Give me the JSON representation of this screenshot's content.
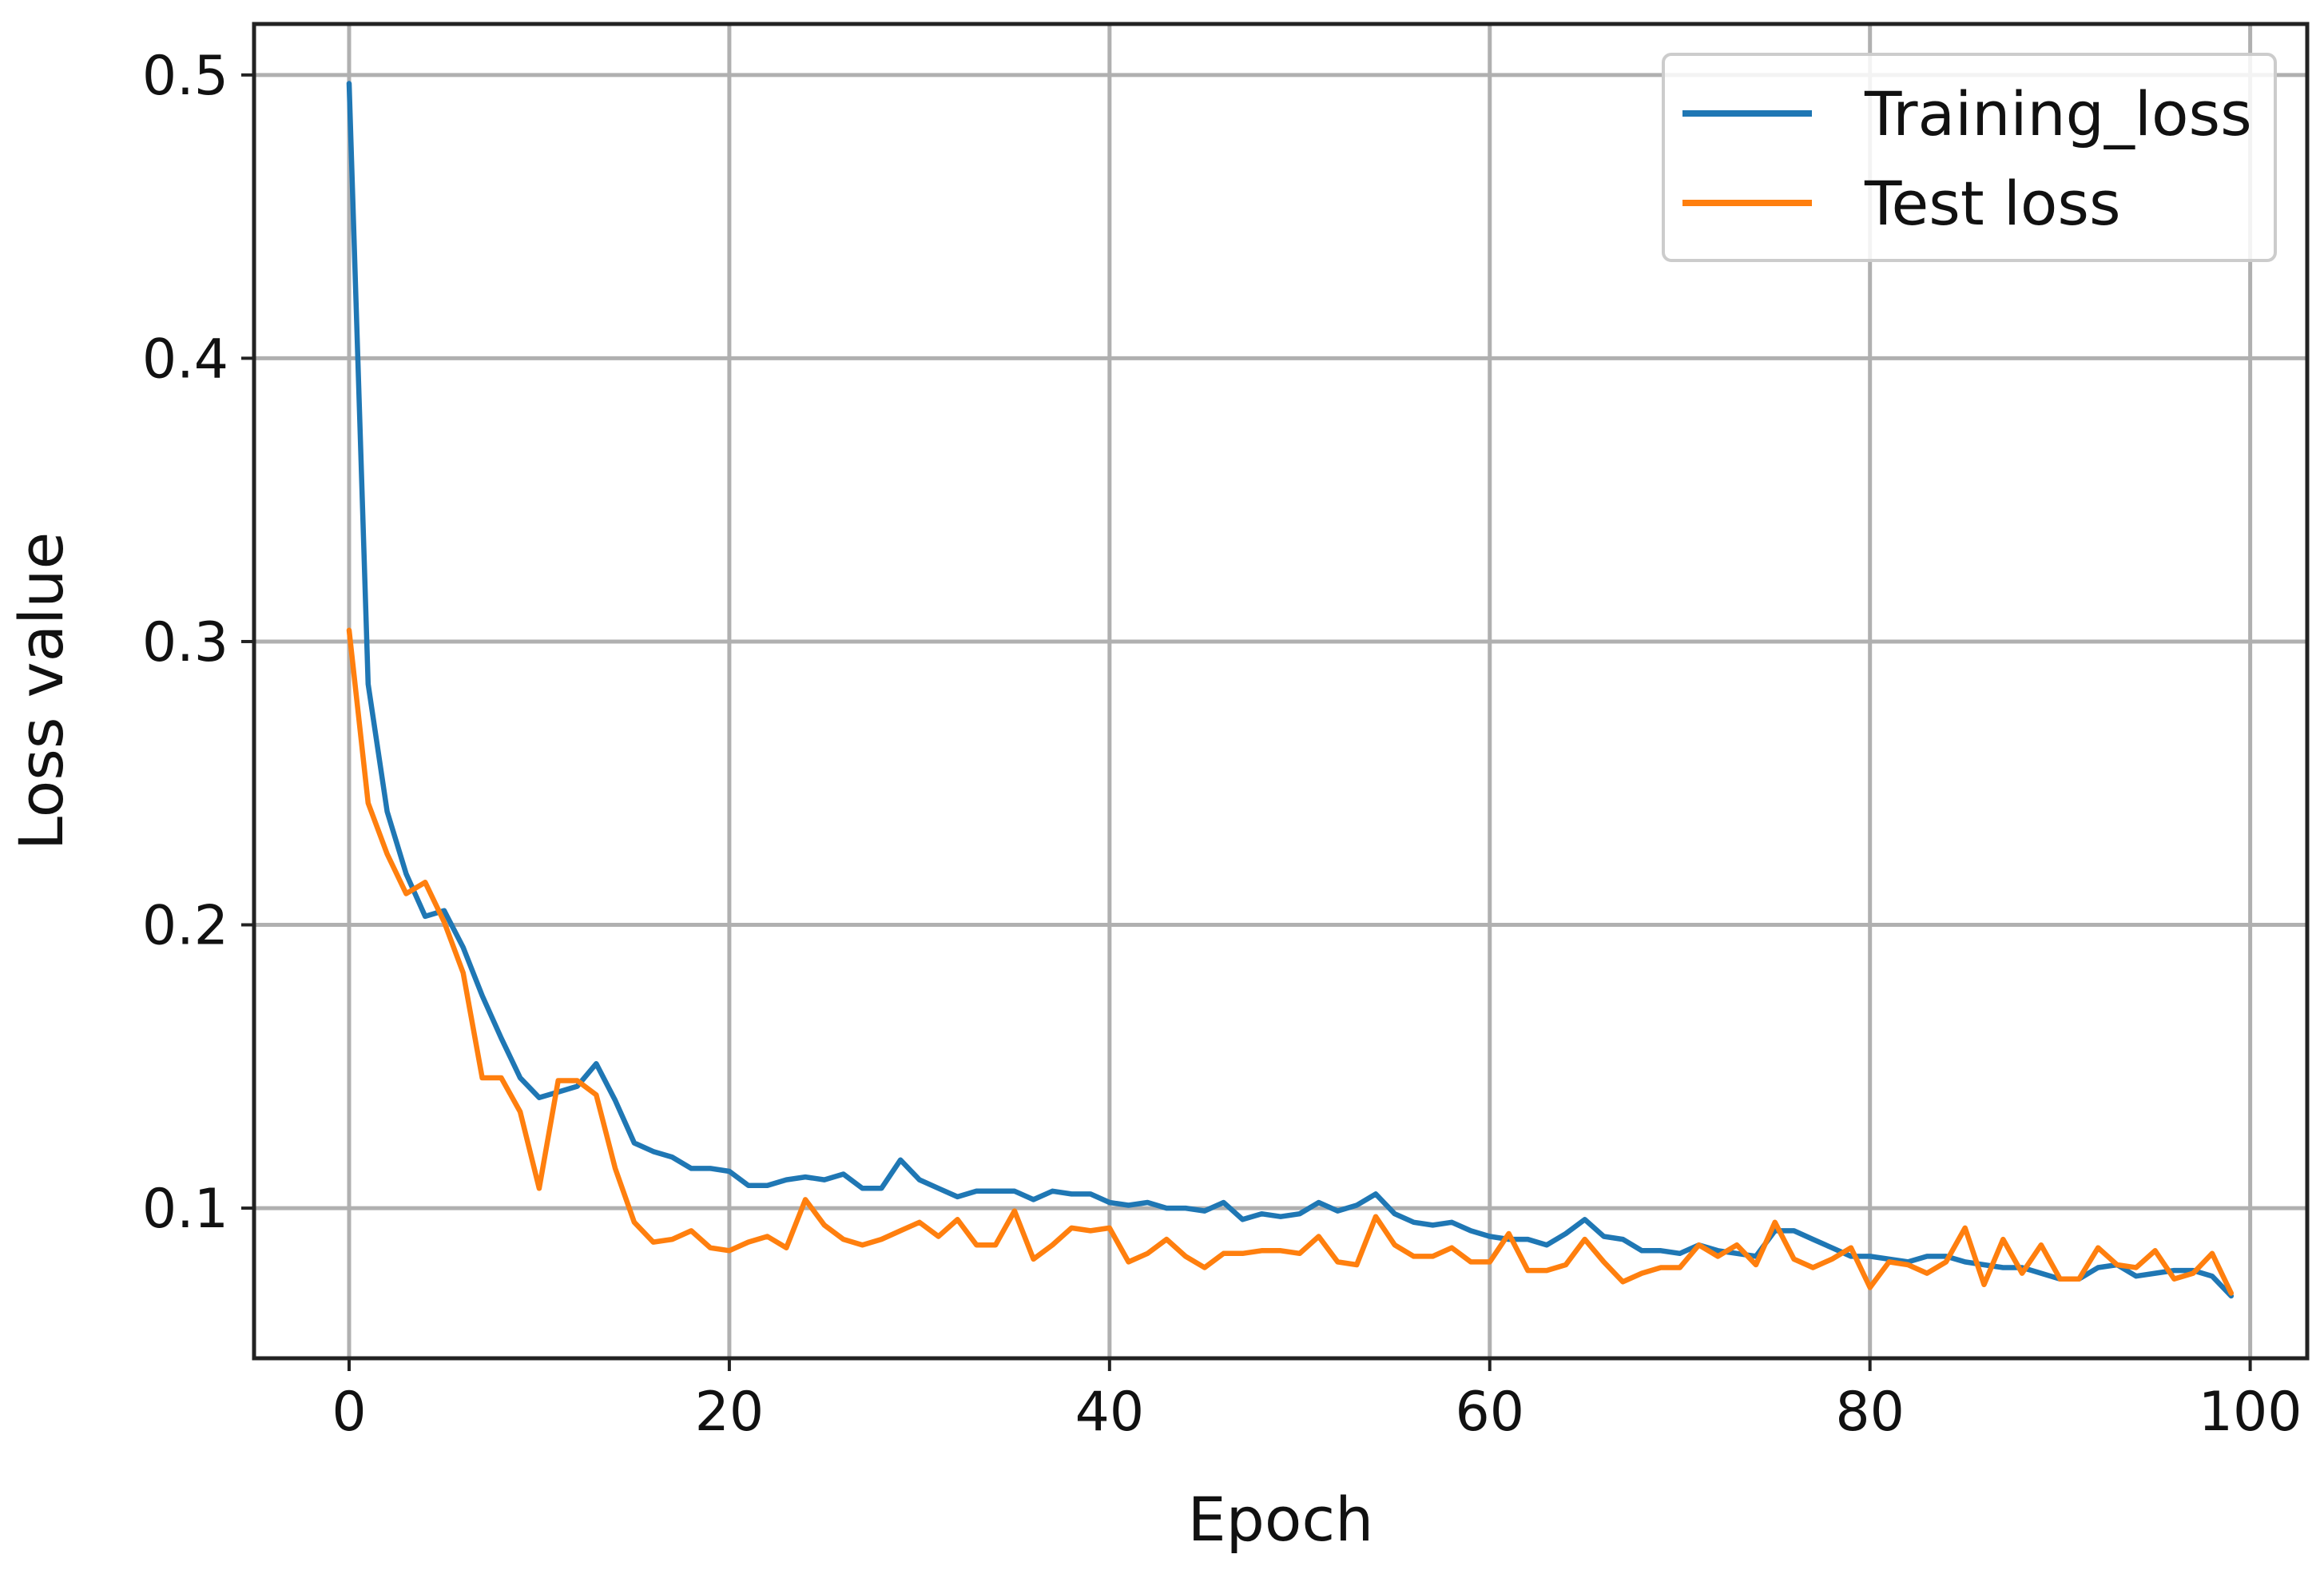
{
  "chart_data": {
    "type": "line",
    "xlabel": "Epoch",
    "ylabel": "Loss value",
    "xlim": [
      -5,
      103
    ],
    "ylim": [
      0.047,
      0.518
    ],
    "xticks": [
      0,
      20,
      40,
      60,
      80,
      100
    ],
    "yticks": [
      0.1,
      0.2,
      0.3,
      0.4,
      0.5
    ],
    "xtick_labels": [
      "0",
      "20",
      "40",
      "60",
      "80",
      "100"
    ],
    "ytick_labels": [
      "0.1",
      "0.2",
      "0.3",
      "0.4",
      "0.5"
    ],
    "grid": true,
    "legend_position": "upper right",
    "series": [
      {
        "name": "Training_loss",
        "color": "#1f77b4",
        "x": [
          0,
          1,
          2,
          3,
          4,
          5,
          6,
          7,
          8,
          9,
          10,
          11,
          12,
          13,
          14,
          15,
          16,
          17,
          18,
          19,
          20,
          21,
          22,
          23,
          24,
          25,
          26,
          27,
          28,
          29,
          30,
          31,
          32,
          33,
          34,
          35,
          36,
          37,
          38,
          39,
          40,
          41,
          42,
          43,
          44,
          45,
          46,
          47,
          48,
          49,
          50,
          51,
          52,
          53,
          54,
          55,
          56,
          57,
          58,
          59,
          60,
          61,
          62,
          63,
          64,
          65,
          66,
          67,
          68,
          69,
          70,
          71,
          72,
          73,
          74,
          75,
          76,
          77,
          78,
          79,
          80,
          81,
          82,
          83,
          84,
          85,
          86,
          87,
          88,
          89,
          90,
          91,
          92,
          93,
          94,
          95,
          96,
          97,
          98,
          99
        ],
        "values": [
          0.497,
          0.285,
          0.24,
          0.218,
          0.203,
          0.205,
          0.192,
          0.175,
          0.16,
          0.146,
          0.139,
          0.141,
          0.143,
          0.151,
          0.138,
          0.123,
          0.12,
          0.118,
          0.114,
          0.114,
          0.113,
          0.108,
          0.108,
          0.11,
          0.111,
          0.11,
          0.112,
          0.107,
          0.107,
          0.117,
          0.11,
          0.107,
          0.104,
          0.106,
          0.106,
          0.106,
          0.103,
          0.106,
          0.105,
          0.105,
          0.102,
          0.101,
          0.102,
          0.1,
          0.1,
          0.099,
          0.102,
          0.096,
          0.098,
          0.097,
          0.098,
          0.102,
          0.099,
          0.101,
          0.105,
          0.098,
          0.095,
          0.094,
          0.095,
          0.092,
          0.09,
          0.089,
          0.089,
          0.087,
          0.091,
          0.096,
          0.09,
          0.089,
          0.085,
          0.085,
          0.084,
          0.087,
          0.085,
          0.084,
          0.083,
          0.092,
          0.092,
          0.089,
          0.086,
          0.083,
          0.083,
          0.082,
          0.081,
          0.083,
          0.083,
          0.081,
          0.08,
          0.079,
          0.079,
          0.077,
          0.075,
          0.075,
          0.079,
          0.08,
          0.076,
          0.077,
          0.078,
          0.078,
          0.076,
          0.069
        ]
      },
      {
        "name": "Test loss",
        "color": "#ff7f0e",
        "x": [
          0,
          1,
          2,
          3,
          4,
          5,
          6,
          7,
          8,
          9,
          10,
          11,
          12,
          13,
          14,
          15,
          16,
          17,
          18,
          19,
          20,
          21,
          22,
          23,
          24,
          25,
          26,
          27,
          28,
          29,
          30,
          31,
          32,
          33,
          34,
          35,
          36,
          37,
          38,
          39,
          40,
          41,
          42,
          43,
          44,
          45,
          46,
          47,
          48,
          49,
          50,
          51,
          52,
          53,
          54,
          55,
          56,
          57,
          58,
          59,
          60,
          61,
          62,
          63,
          64,
          65,
          66,
          67,
          68,
          69,
          70,
          71,
          72,
          73,
          74,
          75,
          76,
          77,
          78,
          79,
          80,
          81,
          82,
          83,
          84,
          85,
          86,
          87,
          88,
          89,
          90,
          91,
          92,
          93,
          94,
          95,
          96,
          97,
          98,
          99
        ],
        "values": [
          0.304,
          0.243,
          0.225,
          0.211,
          0.215,
          0.201,
          0.183,
          0.146,
          0.146,
          0.134,
          0.107,
          0.145,
          0.145,
          0.14,
          0.114,
          0.095,
          0.088,
          0.089,
          0.092,
          0.086,
          0.085,
          0.088,
          0.09,
          0.086,
          0.103,
          0.094,
          0.089,
          0.087,
          0.089,
          0.092,
          0.095,
          0.09,
          0.096,
          0.087,
          0.087,
          0.099,
          0.082,
          0.087,
          0.093,
          0.092,
          0.093,
          0.081,
          0.084,
          0.089,
          0.083,
          0.079,
          0.084,
          0.084,
          0.085,
          0.085,
          0.084,
          0.09,
          0.081,
          0.08,
          0.097,
          0.087,
          0.083,
          0.083,
          0.086,
          0.081,
          0.081,
          0.091,
          0.078,
          0.078,
          0.08,
          0.089,
          0.081,
          0.074,
          0.077,
          0.079,
          0.079,
          0.087,
          0.083,
          0.087,
          0.08,
          0.095,
          0.082,
          0.079,
          0.082,
          0.086,
          0.072,
          0.081,
          0.08,
          0.077,
          0.081,
          0.093,
          0.073,
          0.089,
          0.077,
          0.087,
          0.075,
          0.075,
          0.086,
          0.08,
          0.079,
          0.085,
          0.075,
          0.077,
          0.084,
          0.07
        ]
      }
    ]
  }
}
